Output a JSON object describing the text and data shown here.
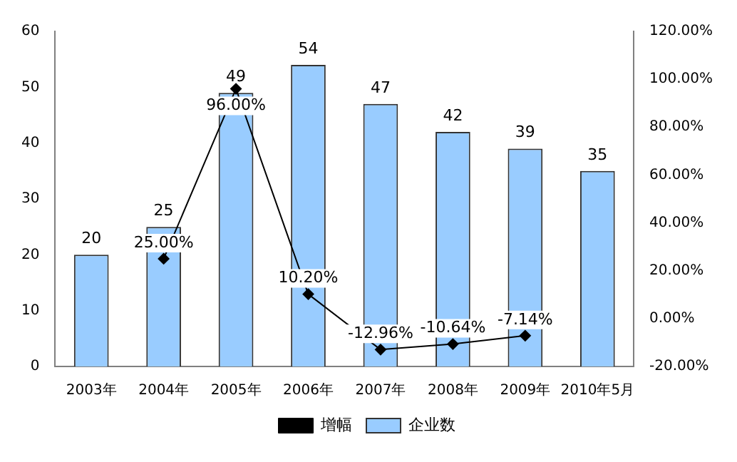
{
  "chart_data": {
    "type": "bar",
    "categories": [
      "2003年",
      "2004年",
      "2005年",
      "2006年",
      "2007年",
      "2008年",
      "2009年",
      "2010年5月"
    ],
    "series": [
      {
        "name": "企业数",
        "color": "#99ccff",
        "values": [
          20,
          25,
          49,
          54,
          47,
          42,
          39,
          35
        ],
        "value_labels": [
          "20",
          "25",
          "49",
          "54",
          "47",
          "42",
          "39",
          "35"
        ]
      },
      {
        "name": "增幅",
        "type": "line",
        "axis": "y2",
        "color": "#000000",
        "marker": "diamond",
        "values": [
          null,
          25,
          96,
          10.2,
          -12.96,
          -10.64,
          -7.14,
          null
        ],
        "value_labels": [
          null,
          "25.00%",
          "96.00%",
          "10.20%",
          "-12.96%",
          "-10.64%",
          "-7.14%",
          null
        ]
      }
    ],
    "ylim": [
      0,
      60
    ],
    "yticks": [
      0,
      10,
      20,
      30,
      40,
      50,
      60
    ],
    "y2lim": [
      -20,
      120
    ],
    "y2ticks": [
      {
        "value": -20,
        "label": "-20.00%"
      },
      {
        "value": 0,
        "label": "0.00%"
      },
      {
        "value": 20,
        "label": "20.00%"
      },
      {
        "value": 40,
        "label": "40.00%"
      },
      {
        "value": 60,
        "label": "60.00%"
      },
      {
        "value": 80,
        "label": "80.00%"
      },
      {
        "value": 100,
        "label": "100.00%"
      },
      {
        "value": 120,
        "label": "120.00%"
      }
    ],
    "grid": false,
    "legend": "bottom"
  }
}
